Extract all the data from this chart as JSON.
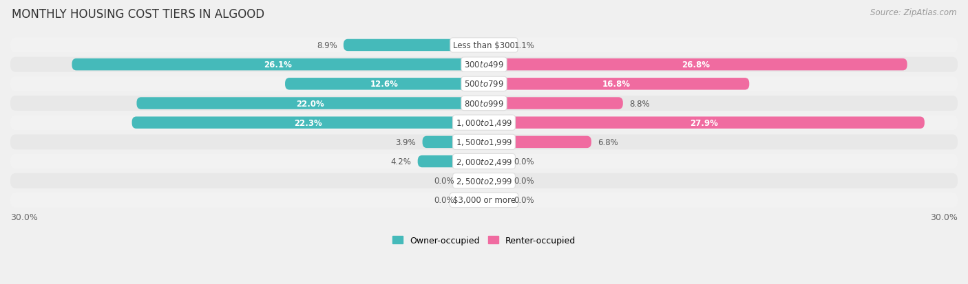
{
  "title": "MONTHLY HOUSING COST TIERS IN ALGOOD",
  "source": "Source: ZipAtlas.com",
  "categories": [
    "Less than $300",
    "$300 to $499",
    "$500 to $799",
    "$800 to $999",
    "$1,000 to $1,499",
    "$1,500 to $1,999",
    "$2,000 to $2,499",
    "$2,500 to $2,999",
    "$3,000 or more"
  ],
  "owner_values": [
    8.9,
    26.1,
    12.6,
    22.0,
    22.3,
    3.9,
    4.2,
    0.0,
    0.0
  ],
  "renter_values": [
    1.1,
    26.8,
    16.8,
    8.8,
    27.9,
    6.8,
    0.0,
    0.0,
    0.0
  ],
  "owner_color": "#45BABA",
  "owner_color_light": "#8ED8D8",
  "renter_color": "#F06BA0",
  "renter_color_light": "#F9B8CF",
  "row_bg_odd": "#f2f2f2",
  "row_bg_even": "#e8e8e8",
  "background_color": "#f0f0f0",
  "max_value": 30.0,
  "label_threshold": 10.0,
  "title_fontsize": 12,
  "source_fontsize": 8.5,
  "cat_fontsize": 8.5,
  "val_fontsize": 8.5
}
